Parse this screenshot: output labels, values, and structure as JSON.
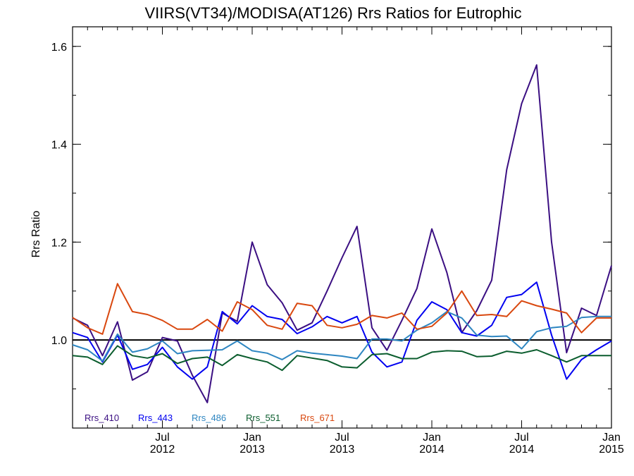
{
  "chart_data": {
    "type": "line",
    "title": "VIIRS(VT34)/MODISA(AT126)  Rrs Ratios for Eutrophic",
    "ylabel": "Rrs Ratio",
    "xlabel": "",
    "ylim": [
      0.82,
      1.64
    ],
    "xlim_months": [
      0,
      36
    ],
    "yticks": [
      1.0,
      1.2,
      1.4,
      1.6
    ],
    "ytick_labels": [
      "1.0",
      "1.2",
      "1.4",
      "1.6"
    ],
    "x_ticks": [
      {
        "month": 6,
        "label_top": "Jul",
        "label_bottom": "2012"
      },
      {
        "month": 12,
        "label_top": "Jan",
        "label_bottom": "2013"
      },
      {
        "month": 18,
        "label_top": "Jul",
        "label_bottom": "2013"
      },
      {
        "month": 24,
        "label_top": "Jan",
        "label_bottom": "2014"
      },
      {
        "month": 30,
        "label_top": "Jul",
        "label_bottom": "2014"
      },
      {
        "month": 36,
        "label_top": "Jan",
        "label_bottom": "2015"
      }
    ],
    "reference_line": 1.0,
    "x": [
      "2012-01",
      "2012-02",
      "2012-03",
      "2012-04",
      "2012-05",
      "2012-06",
      "2012-07",
      "2012-08",
      "2012-09",
      "2012-10",
      "2012-11",
      "2012-12",
      "2013-01",
      "2013-02",
      "2013-03",
      "2013-04",
      "2013-05",
      "2013-06",
      "2013-07",
      "2013-08",
      "2013-09",
      "2013-10",
      "2013-11",
      "2013-12",
      "2014-01",
      "2014-02",
      "2014-03",
      "2014-04",
      "2014-05",
      "2014-06",
      "2014-07",
      "2014-08",
      "2014-09",
      "2014-10",
      "2014-11",
      "2014-12",
      "2015-01"
    ],
    "series": [
      {
        "name": "Rrs_410",
        "color": "#3b0f82",
        "values": [
          1.045,
          1.03,
          0.968,
          1.037,
          0.918,
          0.935,
          1.005,
          0.998,
          0.928,
          0.872,
          1.055,
          1.038,
          1.2,
          1.113,
          1.076,
          1.02,
          1.035,
          1.1,
          1.168,
          1.232,
          1.025,
          0.979,
          1.04,
          1.105,
          1.227,
          1.138,
          1.015,
          1.06,
          1.122,
          1.348,
          1.483,
          1.562,
          1.2,
          0.974,
          1.065,
          1.05,
          1.152
        ]
      },
      {
        "name": "Rrs_443",
        "color": "#0000f0",
        "values": [
          1.015,
          1.005,
          0.955,
          1.01,
          0.94,
          0.95,
          0.985,
          0.945,
          0.92,
          0.945,
          1.058,
          1.033,
          1.07,
          1.048,
          1.042,
          1.013,
          1.027,
          1.048,
          1.035,
          1.048,
          0.975,
          0.945,
          0.955,
          1.04,
          1.078,
          1.062,
          1.015,
          1.008,
          1.03,
          1.087,
          1.093,
          1.118,
          1.01,
          0.92,
          0.96,
          0.98,
          0.998
        ]
      },
      {
        "name": "Rrs_486",
        "color": "#2e86c1",
        "values": [
          0.99,
          0.98,
          0.957,
          1.012,
          0.975,
          0.982,
          0.998,
          0.972,
          0.978,
          0.979,
          0.98,
          0.998,
          0.978,
          0.973,
          0.96,
          0.978,
          0.973,
          0.97,
          0.967,
          0.962,
          1.002,
          1.002,
          0.998,
          1.02,
          1.035,
          1.058,
          1.045,
          1.01,
          1.007,
          1.008,
          0.982,
          1.017,
          1.025,
          1.028,
          1.046,
          1.048,
          1.048
        ]
      },
      {
        "name": "Rrs_551",
        "color": "#0b5d2e",
        "values": [
          0.968,
          0.965,
          0.95,
          0.988,
          0.968,
          0.963,
          0.972,
          0.952,
          0.962,
          0.965,
          0.948,
          0.97,
          0.962,
          0.955,
          0.938,
          0.968,
          0.963,
          0.958,
          0.945,
          0.943,
          0.97,
          0.972,
          0.962,
          0.962,
          0.975,
          0.978,
          0.977,
          0.966,
          0.967,
          0.977,
          0.973,
          0.98,
          0.968,
          0.955,
          0.968,
          0.968,
          0.968
        ]
      },
      {
        "name": "Rrs_671",
        "color": "#d9480f",
        "values": [
          1.046,
          1.025,
          1.012,
          1.115,
          1.058,
          1.052,
          1.04,
          1.022,
          1.022,
          1.042,
          1.018,
          1.078,
          1.062,
          1.03,
          1.022,
          1.075,
          1.07,
          1.03,
          1.025,
          1.032,
          1.05,
          1.045,
          1.055,
          1.022,
          1.028,
          1.055,
          1.1,
          1.05,
          1.052,
          1.048,
          1.08,
          1.07,
          1.063,
          1.055,
          1.015,
          1.045,
          1.045
        ]
      }
    ]
  }
}
